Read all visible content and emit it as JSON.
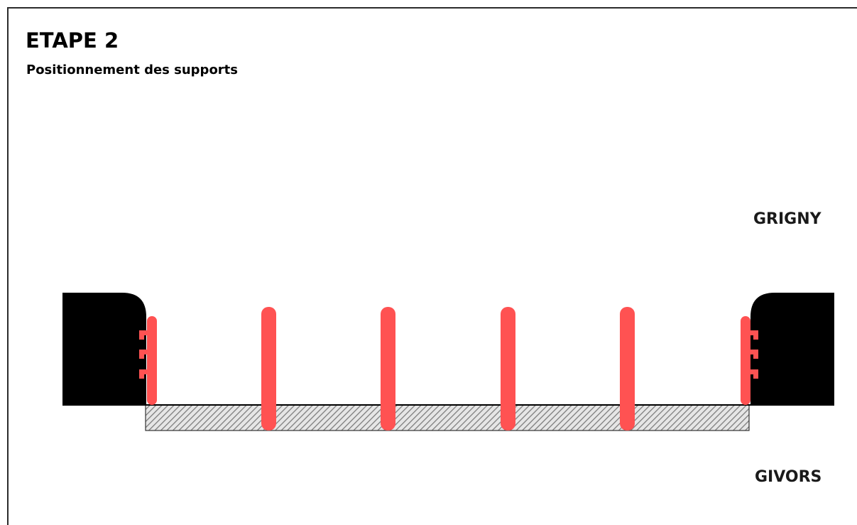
{
  "header": {
    "title": "ETAPE 2",
    "subtitle": "Positionnement des supports"
  },
  "labels": {
    "top_bank": "GRIGNY",
    "bottom_bank": "GIVORS"
  },
  "colors": {
    "support": "#ff5252",
    "abutment": "#000000",
    "deck_hatch": "#9a9a9a",
    "frame": "#2b2b2b"
  },
  "supports": {
    "intermediate_count": 4,
    "abutment_count": 2
  }
}
